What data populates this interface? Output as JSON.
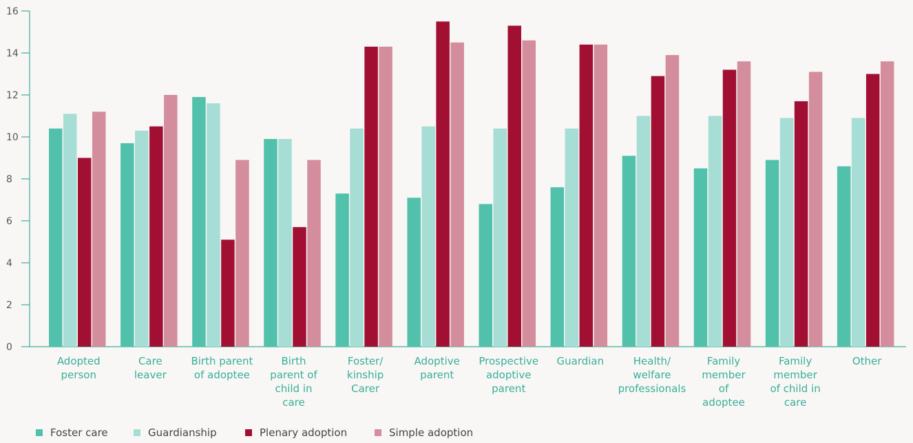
{
  "chart_data": {
    "type": "bar",
    "ylim": [
      0,
      16
    ],
    "yticks": [
      "0",
      "2",
      "4",
      "6",
      "8",
      "10",
      "12",
      "14",
      "16"
    ],
    "categories": [
      [
        "Adopted",
        "person"
      ],
      [
        "Care",
        "leaver"
      ],
      [
        "Birth parent",
        "of adoptee"
      ],
      [
        "Birth",
        "parent of",
        "child in",
        "care"
      ],
      [
        "Foster/",
        "kinship",
        "Carer"
      ],
      [
        "Adoptive",
        "parent"
      ],
      [
        "Prospective",
        "adoptive",
        "parent"
      ],
      [
        "Guardian"
      ],
      [
        "Health/",
        "welfare",
        "professionals"
      ],
      [
        "Family",
        "member",
        "of",
        "adoptee"
      ],
      [
        "Family",
        "member",
        "of child in",
        "care"
      ],
      [
        "Other"
      ]
    ],
    "series": [
      {
        "name": "Foster care",
        "color": "#52c1ac",
        "values": [
          10.4,
          9.7,
          11.9,
          9.9,
          7.3,
          7.1,
          6.8,
          7.6,
          9.1,
          8.5,
          8.9,
          8.6
        ]
      },
      {
        "name": "Guardianship",
        "color": "#a6ddd4",
        "values": [
          11.1,
          10.3,
          11.6,
          9.9,
          10.4,
          10.5,
          10.4,
          10.4,
          11.0,
          11.0,
          10.9,
          10.9
        ]
      },
      {
        "name": "Plenary adoption",
        "color": "#a11033",
        "values": [
          9.0,
          10.5,
          5.1,
          5.7,
          14.3,
          15.5,
          15.3,
          14.4,
          12.9,
          13.2,
          11.7,
          13.0
        ]
      },
      {
        "name": "Simple adoption",
        "color": "#d38d9d",
        "values": [
          11.2,
          12.0,
          8.9,
          8.9,
          14.3,
          14.5,
          14.6,
          14.4,
          13.9,
          13.6,
          13.1,
          13.6
        ]
      }
    ],
    "legend_position": "bottom-left",
    "grid": false
  }
}
